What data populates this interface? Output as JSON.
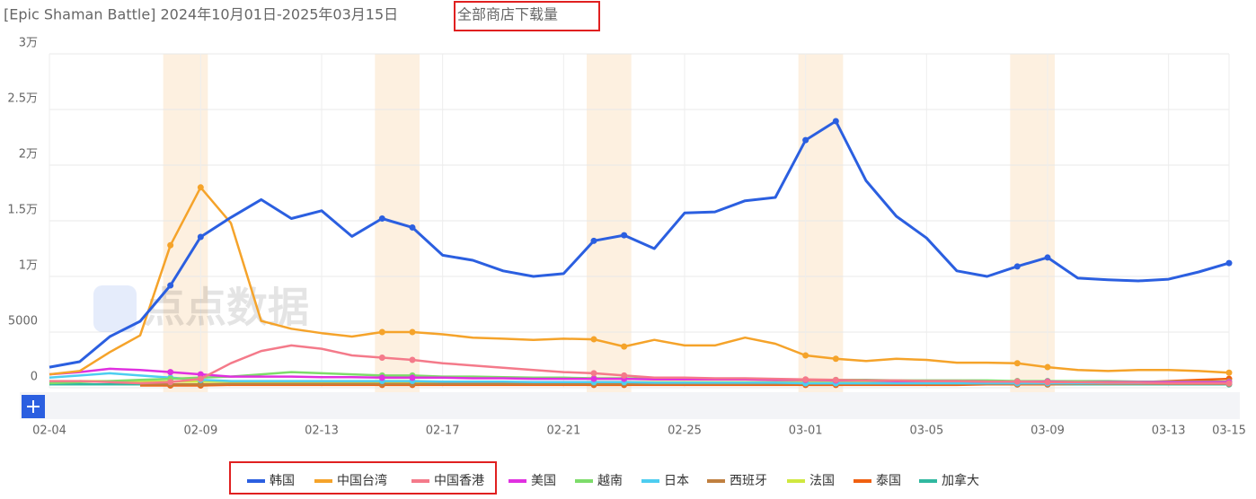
{
  "chart_data": {
    "type": "line",
    "title": "[Epic Shaman Battle] 2024年10月01日-2025年03月15日",
    "title_highlight": "全部商店下载量",
    "watermark": "点点数据",
    "categories": [
      "02-04",
      null,
      null,
      null,
      null,
      "02-09",
      null,
      null,
      null,
      "02-13",
      null,
      null,
      null,
      "02-17",
      null,
      null,
      null,
      "02-21",
      null,
      null,
      null,
      "02-25",
      null,
      null,
      null,
      "03-01",
      null,
      null,
      null,
      "03-05",
      null,
      null,
      null,
      "03-09",
      null,
      null,
      null,
      "03-13",
      null,
      "03-15"
    ],
    "ylim": [
      0,
      30000
    ],
    "yticks": [
      0,
      5000,
      {
        "value": 10000,
        "label": "1万"
      },
      {
        "value": 15000,
        "label": "1.5万"
      },
      {
        "value": 20000,
        "label": "2万"
      },
      {
        "value": 25000,
        "label": "2.5万"
      },
      {
        "value": 30000,
        "label": "3万"
      }
    ],
    "grid": true,
    "series": [
      {
        "name": "韩国",
        "color": "#2b5fe0",
        "values": [
          1850,
          2340,
          4600,
          5970,
          9190,
          13550,
          15300,
          16900,
          15200,
          15900,
          13600,
          15200,
          14400,
          11900,
          11450,
          10500,
          10000,
          10250,
          13200,
          13700,
          12500,
          15700,
          15800,
          16800,
          17100,
          22250,
          23950,
          18600,
          15400,
          13450,
          10500,
          10000,
          10900,
          11700,
          9850,
          9700,
          9600,
          9750,
          10400,
          11200
        ]
      },
      {
        "name": "中国台湾",
        "color": "#f5a32a",
        "values": [
          1200,
          1500,
          3200,
          4700,
          12800,
          18000,
          14800,
          6000,
          5300,
          4900,
          4600,
          5000,
          5000,
          4800,
          4500,
          4400,
          4300,
          4400,
          4350,
          3700,
          4300,
          3800,
          3800,
          4500,
          3950,
          2900,
          2600,
          2400,
          2600,
          2500,
          2250,
          2250,
          2200,
          1850,
          1600,
          1500,
          1600,
          1600,
          1500,
          1350
        ]
      },
      {
        "name": "中国香港",
        "color": "#f47a8a",
        "values": [
          600,
          600,
          500,
          400,
          500,
          800,
          2200,
          3300,
          3800,
          3500,
          2900,
          2700,
          2500,
          2200,
          2000,
          1800,
          1600,
          1400,
          1300,
          1100,
          900,
          900,
          850,
          850,
          800,
          750,
          700,
          650,
          650,
          600,
          600,
          550,
          550,
          500,
          500,
          450,
          450,
          400,
          400,
          400
        ]
      },
      {
        "name": "美国",
        "color": "#e030e0",
        "values": [
          1200,
          1400,
          1700,
          1600,
          1400,
          1200,
          1000,
          1000,
          1000,
          950,
          950,
          900,
          900,
          900,
          850,
          850,
          800,
          800,
          800,
          800,
          750,
          750,
          750,
          750,
          700,
          700,
          650,
          650,
          600,
          600,
          600,
          550,
          550,
          550,
          500,
          500,
          500,
          500,
          500,
          500
        ]
      },
      {
        "name": "越南",
        "color": "#7ddc6a",
        "values": [
          400,
          500,
          600,
          700,
          800,
          900,
          1000,
          1200,
          1400,
          1300,
          1200,
          1100,
          1100,
          1000,
          1000,
          950,
          900,
          900,
          850,
          850,
          800,
          800,
          800,
          750,
          750,
          700,
          700,
          700,
          650,
          650,
          650,
          650,
          600,
          600,
          600,
          600,
          550,
          550,
          550,
          550
        ]
      },
      {
        "name": "日本",
        "color": "#4dcdf0",
        "values": [
          900,
          1100,
          1300,
          1100,
          900,
          700,
          600,
          600,
          600,
          600,
          600,
          600,
          600,
          550,
          550,
          550,
          500,
          500,
          500,
          500,
          450,
          450,
          450,
          450,
          450,
          400,
          400,
          400,
          400,
          400,
          400,
          400,
          400,
          400,
          400,
          400,
          400,
          400,
          400,
          400
        ]
      },
      {
        "name": "西班牙",
        "color": "#c08040",
        "values": [
          null,
          null,
          null,
          300,
          300,
          300,
          350,
          350,
          350,
          350,
          350,
          350,
          350,
          350,
          350,
          350,
          350,
          350,
          350,
          350,
          350,
          350,
          350,
          350,
          350,
          350,
          350,
          350,
          350,
          350,
          350,
          350,
          350,
          350,
          350,
          350,
          350,
          350,
          350,
          350
        ]
      },
      {
        "name": "法国",
        "color": "#d0e840",
        "values": [
          null,
          600,
          600,
          600,
          550,
          550,
          550,
          550,
          550,
          550,
          500,
          500,
          500,
          500,
          500,
          500,
          500,
          500,
          500,
          500,
          500,
          500,
          500,
          500,
          500,
          500,
          500,
          500,
          500,
          500,
          500,
          500,
          500,
          500,
          500,
          500,
          500,
          500,
          500,
          500
        ]
      },
      {
        "name": "泰国",
        "color": "#f06010",
        "values": [
          null,
          null,
          null,
          200,
          200,
          200,
          250,
          250,
          250,
          250,
          250,
          250,
          250,
          250,
          250,
          250,
          250,
          250,
          250,
          250,
          250,
          250,
          250,
          250,
          250,
          250,
          250,
          250,
          250,
          250,
          250,
          300,
          300,
          300,
          350,
          400,
          500,
          600,
          700,
          800
        ]
      },
      {
        "name": "加拿大",
        "color": "#30b8a0",
        "values": [
          300,
          300,
          300,
          300,
          300,
          300,
          300,
          300,
          300,
          300,
          300,
          300,
          300,
          300,
          300,
          300,
          300,
          300,
          300,
          300,
          300,
          300,
          300,
          300,
          300,
          300,
          300,
          300,
          300,
          300,
          300,
          300,
          300,
          300,
          300,
          300,
          300,
          300,
          300,
          300
        ]
      }
    ]
  }
}
